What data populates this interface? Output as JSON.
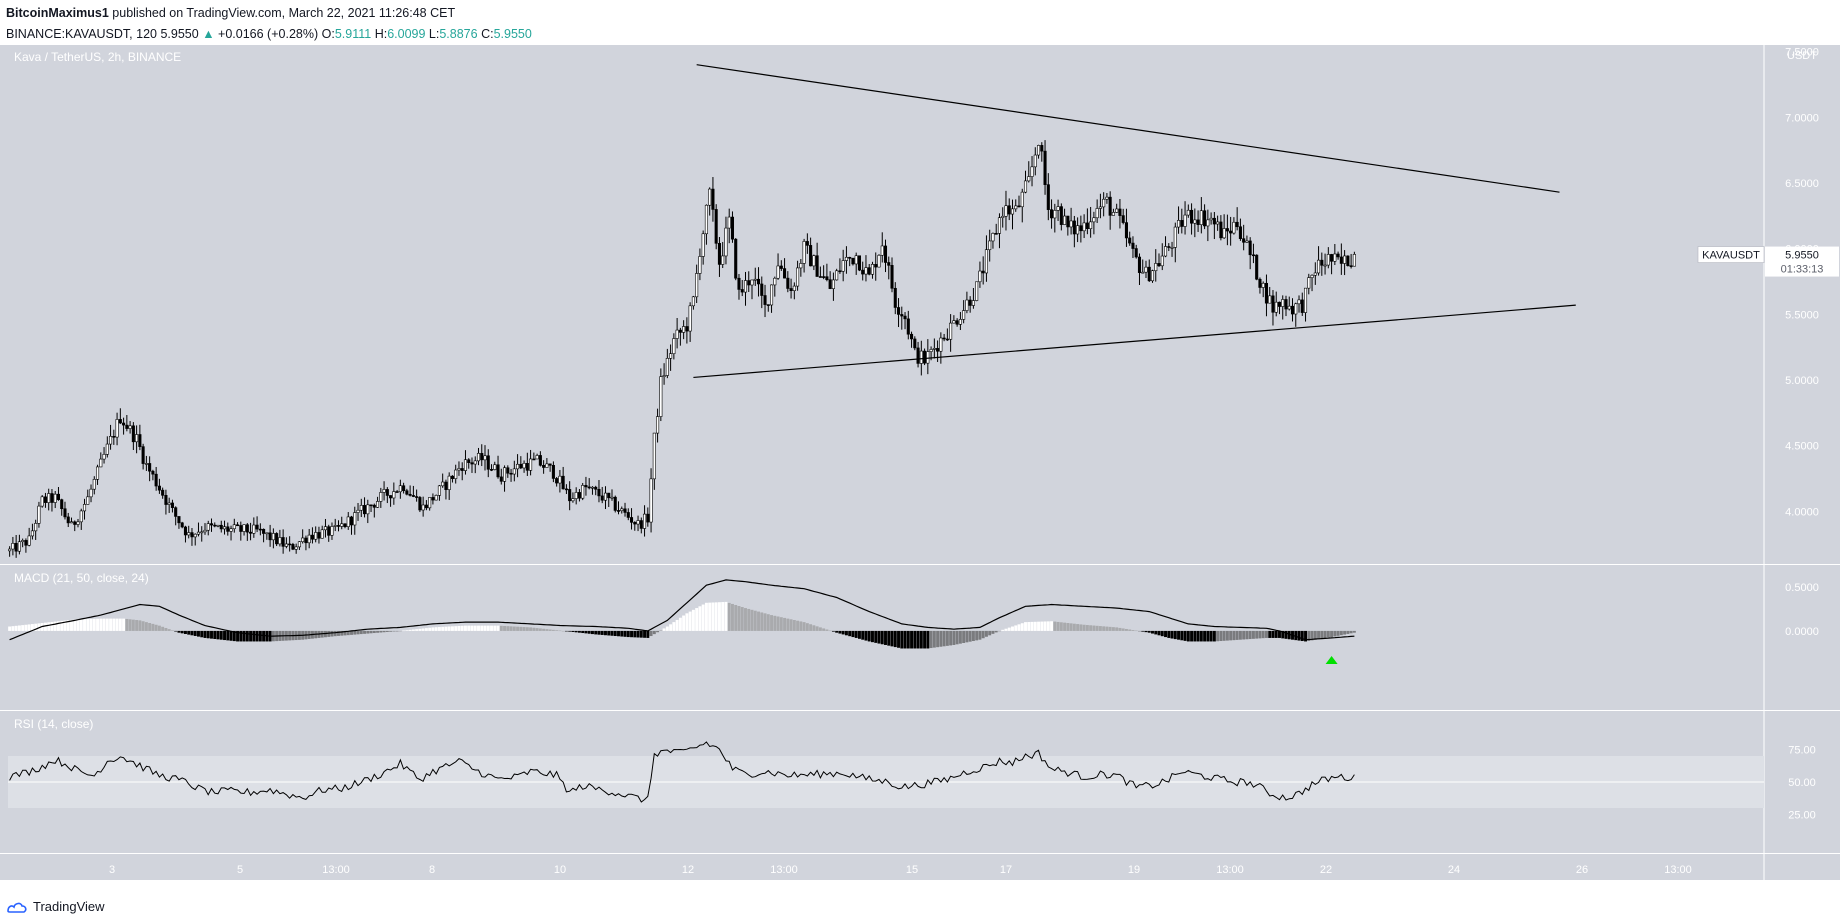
{
  "header": {
    "author": "BitcoinMaximus1",
    "published_text": "published on TradingView.com, March 22, 2021 11:26:48 CET",
    "symbol_line": "BINANCE:KAVAUSDT, 120",
    "last": "5.9550",
    "change_arrow": "▲",
    "change": "+0.0166 (+0.28%)",
    "o_label": "O:",
    "o": "5.9111",
    "h_label": "H:",
    "h": "6.0099",
    "l_label": "L:",
    "l": "5.8876",
    "c_label": "C:",
    "c": "5.9550"
  },
  "footer": {
    "brand": "TradingView"
  },
  "colors": {
    "pane_bg": "#d1d4dc",
    "rsi_band": "#dde0e6",
    "up_candle": "#ffffff",
    "down_candle": "#000000",
    "macd_pos_strong": "#ffffff",
    "macd_pos_weak": "#a9aaad",
    "macd_neg_strong": "#000000",
    "macd_neg_weak": "#7a7b7e",
    "signal_arrow": "#00e000"
  },
  "chart_data": [
    {
      "type": "candlestick",
      "title": "Kava / TetherUS, 2h, BINANCE",
      "currency": "USDT",
      "ylim": [
        3.6,
        7.55
      ],
      "y_ticks": [
        "7.5000",
        "7.0000",
        "6.5000",
        "6.0000",
        "5.5000",
        "5.0000",
        "4.5000",
        "4.0000"
      ],
      "x_ticks": [
        "3",
        "5",
        "13:00",
        "8",
        "10",
        "12",
        "13:00",
        "15",
        "17",
        "19",
        "13:00",
        "22",
        "24",
        "26",
        "13:00"
      ],
      "last_price_label": {
        "symbol": "KAVAUSDT",
        "price": "5.9550",
        "countdown": "01:33:13"
      },
      "close_anchors": [
        [
          0,
          3.7
        ],
        [
          6,
          3.78
        ],
        [
          10,
          4.08
        ],
        [
          14,
          4.1
        ],
        [
          19,
          3.88
        ],
        [
          24,
          4.1
        ],
        [
          29,
          4.42
        ],
        [
          34,
          4.72
        ],
        [
          39,
          4.55
        ],
        [
          42,
          4.35
        ],
        [
          46,
          4.18
        ],
        [
          50,
          4.0
        ],
        [
          55,
          3.82
        ],
        [
          60,
          3.88
        ],
        [
          68,
          3.86
        ],
        [
          76,
          3.85
        ],
        [
          82,
          3.78
        ],
        [
          86,
          3.72
        ],
        [
          92,
          3.82
        ],
        [
          100,
          3.85
        ],
        [
          108,
          4.0
        ],
        [
          115,
          4.12
        ],
        [
          121,
          4.2
        ],
        [
          127,
          4.03
        ],
        [
          133,
          4.18
        ],
        [
          139,
          4.36
        ],
        [
          145,
          4.4
        ],
        [
          151,
          4.28
        ],
        [
          157,
          4.35
        ],
        [
          162,
          4.38
        ],
        [
          167,
          4.3
        ],
        [
          172,
          4.1
        ],
        [
          177,
          4.18
        ],
        [
          183,
          4.1
        ],
        [
          189,
          3.98
        ],
        [
          193,
          3.9
        ],
        [
          196,
          3.95
        ],
        [
          198,
          4.55
        ],
        [
          200,
          4.98
        ],
        [
          204,
          5.3
        ],
        [
          208,
          5.42
        ],
        [
          210,
          5.6
        ],
        [
          212,
          6.0
        ],
        [
          215,
          6.4
        ],
        [
          218,
          5.9
        ],
        [
          221,
          6.2
        ],
        [
          224,
          5.65
        ],
        [
          228,
          5.8
        ],
        [
          232,
          5.55
        ],
        [
          236,
          5.9
        ],
        [
          240,
          5.68
        ],
        [
          244,
          6.0
        ],
        [
          248,
          5.85
        ],
        [
          252,
          5.7
        ],
        [
          256,
          5.9
        ],
        [
          260,
          5.95
        ],
        [
          264,
          5.78
        ],
        [
          268,
          6.05
        ],
        [
          272,
          5.6
        ],
        [
          275,
          5.48
        ],
        [
          278,
          5.2
        ],
        [
          281,
          5.15
        ],
        [
          285,
          5.28
        ],
        [
          289,
          5.4
        ],
        [
          293,
          5.55
        ],
        [
          297,
          5.7
        ],
        [
          301,
          6.0
        ],
        [
          305,
          6.3
        ],
        [
          309,
          6.28
        ],
        [
          313,
          6.5
        ],
        [
          316,
          6.85
        ],
        [
          319,
          6.3
        ],
        [
          322,
          6.3
        ],
        [
          325,
          6.15
        ],
        [
          329,
          6.15
        ],
        [
          333,
          6.28
        ],
        [
          337,
          6.35
        ],
        [
          341,
          6.2
        ],
        [
          345,
          5.95
        ],
        [
          349,
          5.8
        ],
        [
          353,
          5.9
        ],
        [
          357,
          6.05
        ],
        [
          361,
          6.25
        ],
        [
          365,
          6.25
        ],
        [
          369,
          6.22
        ],
        [
          373,
          6.1
        ],
        [
          377,
          6.2
        ],
        [
          381,
          5.95
        ],
        [
          385,
          5.7
        ],
        [
          388,
          5.55
        ],
        [
          391,
          5.6
        ],
        [
          394,
          5.55
        ],
        [
          397,
          5.58
        ],
        [
          401,
          5.85
        ],
        [
          405,
          5.92
        ],
        [
          409,
          5.88
        ],
        [
          413,
          5.95
        ]
      ],
      "trendlines": [
        {
          "name": "upper",
          "from": [
            211,
            7.4
          ],
          "to": [
            476,
            6.43
          ]
        },
        {
          "name": "lower",
          "from": [
            210,
            5.02
          ],
          "to": [
            481,
            5.57
          ]
        }
      ]
    },
    {
      "type": "macd",
      "title": "MACD (21, 50, close, 24)",
      "ylim": [
        -0.9,
        0.75
      ],
      "y_ticks": [
        "0.5000",
        "0.0000"
      ],
      "macd_anchors": [
        [
          0,
          -0.1
        ],
        [
          10,
          0.05
        ],
        [
          20,
          0.12
        ],
        [
          28,
          0.18
        ],
        [
          35,
          0.25
        ],
        [
          40,
          0.3
        ],
        [
          46,
          0.28
        ],
        [
          52,
          0.18
        ],
        [
          60,
          0.06
        ],
        [
          70,
          -0.02
        ],
        [
          80,
          -0.06
        ],
        [
          90,
          -0.05
        ],
        [
          100,
          -0.02
        ],
        [
          110,
          0.02
        ],
        [
          120,
          0.04
        ],
        [
          130,
          0.08
        ],
        [
          140,
          0.1
        ],
        [
          150,
          0.1
        ],
        [
          160,
          0.08
        ],
        [
          170,
          0.06
        ],
        [
          180,
          0.05
        ],
        [
          190,
          0.03
        ],
        [
          196,
          0.0
        ],
        [
          202,
          0.12
        ],
        [
          208,
          0.32
        ],
        [
          214,
          0.52
        ],
        [
          220,
          0.58
        ],
        [
          226,
          0.56
        ],
        [
          234,
          0.52
        ],
        [
          244,
          0.48
        ],
        [
          254,
          0.38
        ],
        [
          264,
          0.22
        ],
        [
          274,
          0.08
        ],
        [
          282,
          0.04
        ],
        [
          290,
          0.02
        ],
        [
          298,
          0.04
        ],
        [
          304,
          0.15
        ],
        [
          312,
          0.28
        ],
        [
          320,
          0.3
        ],
        [
          330,
          0.28
        ],
        [
          340,
          0.26
        ],
        [
          350,
          0.22
        ],
        [
          356,
          0.15
        ],
        [
          362,
          0.08
        ],
        [
          370,
          0.05
        ],
        [
          378,
          0.04
        ],
        [
          386,
          0.03
        ],
        [
          390,
          0.0
        ],
        [
          398,
          -0.1
        ],
        [
          406,
          -0.08
        ],
        [
          413,
          -0.06
        ]
      ],
      "hist_anchors": [
        [
          0,
          0.05
        ],
        [
          10,
          0.09
        ],
        [
          20,
          0.13
        ],
        [
          28,
          0.14
        ],
        [
          35,
          0.14
        ],
        [
          40,
          0.12
        ],
        [
          46,
          0.06
        ],
        [
          52,
          -0.02
        ],
        [
          60,
          -0.08
        ],
        [
          70,
          -0.12
        ],
        [
          80,
          -0.12
        ],
        [
          90,
          -0.1
        ],
        [
          100,
          -0.06
        ],
        [
          110,
          -0.03
        ],
        [
          120,
          0.0
        ],
        [
          130,
          0.04
        ],
        [
          140,
          0.06
        ],
        [
          150,
          0.06
        ],
        [
          160,
          0.04
        ],
        [
          170,
          0.0
        ],
        [
          180,
          -0.04
        ],
        [
          190,
          -0.07
        ],
        [
          196,
          -0.08
        ],
        [
          202,
          0.05
        ],
        [
          208,
          0.2
        ],
        [
          214,
          0.32
        ],
        [
          220,
          0.33
        ],
        [
          226,
          0.26
        ],
        [
          234,
          0.18
        ],
        [
          244,
          0.1
        ],
        [
          254,
          -0.02
        ],
        [
          264,
          -0.12
        ],
        [
          274,
          -0.2
        ],
        [
          282,
          -0.2
        ],
        [
          290,
          -0.16
        ],
        [
          298,
          -0.1
        ],
        [
          304,
          0.0
        ],
        [
          312,
          0.1
        ],
        [
          320,
          0.11
        ],
        [
          330,
          0.07
        ],
        [
          340,
          0.04
        ],
        [
          350,
          -0.02
        ],
        [
          356,
          -0.08
        ],
        [
          362,
          -0.12
        ],
        [
          370,
          -0.12
        ],
        [
          378,
          -0.1
        ],
        [
          386,
          -0.08
        ],
        [
          390,
          -0.08
        ],
        [
          398,
          -0.12
        ],
        [
          406,
          -0.07
        ],
        [
          413,
          -0.02
        ]
      ],
      "signal_marker_bar": 406
    },
    {
      "type": "rsi",
      "title": "RSI (14, close)",
      "ylim": [
        0,
        100
      ],
      "y_ticks": [
        "75.00",
        "50.00",
        "25.00"
      ],
      "band": [
        30,
        70
      ],
      "midline": 50,
      "rsi_anchors": [
        [
          0,
          54
        ],
        [
          6,
          58
        ],
        [
          10,
          62
        ],
        [
          14,
          67
        ],
        [
          18,
          63
        ],
        [
          22,
          57
        ],
        [
          26,
          55
        ],
        [
          30,
          66
        ],
        [
          34,
          70
        ],
        [
          38,
          65
        ],
        [
          42,
          60
        ],
        [
          46,
          55
        ],
        [
          50,
          53
        ],
        [
          54,
          50
        ],
        [
          58,
          45
        ],
        [
          62,
          42
        ],
        [
          68,
          43
        ],
        [
          74,
          42
        ],
        [
          80,
          44
        ],
        [
          86,
          40
        ],
        [
          90,
          38
        ],
        [
          96,
          44
        ],
        [
          102,
          45
        ],
        [
          108,
          50
        ],
        [
          114,
          56
        ],
        [
          120,
          64
        ],
        [
          126,
          52
        ],
        [
          130,
          58
        ],
        [
          134,
          62
        ],
        [
          138,
          66
        ],
        [
          144,
          58
        ],
        [
          150,
          52
        ],
        [
          156,
          54
        ],
        [
          160,
          58
        ],
        [
          164,
          57
        ],
        [
          168,
          55
        ],
        [
          172,
          42
        ],
        [
          176,
          47
        ],
        [
          180,
          45
        ],
        [
          186,
          42
        ],
        [
          192,
          38
        ],
        [
          196,
          36
        ],
        [
          198,
          72
        ],
        [
          202,
          74
        ],
        [
          206,
          72
        ],
        [
          210,
          76
        ],
        [
          214,
          80
        ],
        [
          218,
          75
        ],
        [
          222,
          60
        ],
        [
          226,
          56
        ],
        [
          232,
          58
        ],
        [
          240,
          55
        ],
        [
          248,
          56
        ],
        [
          256,
          57
        ],
        [
          264,
          52
        ],
        [
          270,
          50
        ],
        [
          274,
          46
        ],
        [
          280,
          48
        ],
        [
          288,
          52
        ],
        [
          294,
          58
        ],
        [
          300,
          62
        ],
        [
          304,
          66
        ],
        [
          308,
          65
        ],
        [
          312,
          70
        ],
        [
          316,
          72
        ],
        [
          320,
          60
        ],
        [
          324,
          58
        ],
        [
          330,
          54
        ],
        [
          336,
          56
        ],
        [
          340,
          55
        ],
        [
          346,
          46
        ],
        [
          352,
          48
        ],
        [
          356,
          52
        ],
        [
          360,
          58
        ],
        [
          364,
          56
        ],
        [
          368,
          54
        ],
        [
          372,
          52
        ],
        [
          376,
          50
        ],
        [
          380,
          50
        ],
        [
          384,
          46
        ],
        [
          388,
          40
        ],
        [
          392,
          38
        ],
        [
          396,
          41
        ],
        [
          400,
          48
        ],
        [
          404,
          52
        ],
        [
          408,
          54
        ],
        [
          413,
          53
        ]
      ]
    }
  ]
}
